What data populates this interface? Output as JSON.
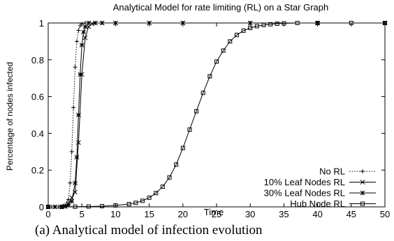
{
  "chart_data": {
    "type": "line",
    "title": "Analytical Model for rate limiting (RL) on a Star Graph",
    "xlabel": "Time",
    "ylabel": "Percentage of nodes infected",
    "xlim": [
      0,
      50
    ],
    "ylim": [
      0,
      1
    ],
    "xticks": [
      "0",
      "5",
      "10",
      "15",
      "20",
      "25",
      "30",
      "35",
      "40",
      "45",
      "50"
    ],
    "yticks": [
      "0",
      "0.2",
      "0.4",
      "0.6",
      "0.8",
      "1"
    ],
    "grid": false,
    "legend_position": "bottom-right",
    "series": [
      {
        "name": "No RL",
        "marker": "plus",
        "line": "dotted",
        "x": [
          0,
          0.5,
          1,
          1.5,
          2,
          2.5,
          3,
          3.25,
          3.5,
          3.75,
          4,
          4.25,
          4.5,
          4.75,
          5,
          5.5,
          6,
          7,
          8,
          10,
          15,
          20,
          30,
          40,
          50
        ],
        "y": [
          0,
          0,
          0,
          0,
          0.002,
          0.01,
          0.04,
          0.13,
          0.3,
          0.54,
          0.76,
          0.9,
          0.96,
          0.985,
          0.995,
          1,
          1,
          1,
          1,
          1,
          1,
          1,
          1,
          1,
          1
        ]
      },
      {
        "name": "10% Leaf Nodes RL",
        "marker": "x",
        "line": "solid",
        "x": [
          0,
          1,
          2,
          2.5,
          3,
          3.5,
          4,
          4.5,
          5,
          5.5,
          6,
          6.5,
          7,
          8,
          10,
          15,
          20,
          30,
          40,
          50
        ],
        "y": [
          0,
          0,
          0,
          0.005,
          0.02,
          0.05,
          0.08,
          0.35,
          0.72,
          0.92,
          0.98,
          0.995,
          1,
          1,
          1,
          1,
          1,
          1,
          1,
          1
        ]
      },
      {
        "name": "30% Leaf Nodes RL",
        "marker": "star",
        "line": "solid",
        "x": [
          0,
          1,
          2,
          2.5,
          3,
          3.5,
          4,
          4.25,
          4.5,
          4.75,
          5,
          5.25,
          5.5,
          6,
          7,
          8,
          10,
          15,
          20,
          30,
          40,
          50
        ],
        "y": [
          0,
          0,
          0,
          0.002,
          0.01,
          0.03,
          0.13,
          0.27,
          0.5,
          0.72,
          0.88,
          0.95,
          0.98,
          1,
          1,
          1,
          1,
          1,
          1,
          1,
          1,
          1
        ]
      },
      {
        "name": "Hub Node RL",
        "marker": "square",
        "line": "solid",
        "x": [
          0,
          2,
          4,
          6,
          8,
          10,
          12,
          13,
          14,
          15,
          16,
          17,
          18,
          19,
          20,
          21,
          22,
          23,
          24,
          25,
          26,
          27,
          28,
          29,
          30,
          31,
          32,
          33,
          34,
          35,
          37,
          40,
          45,
          50
        ],
        "y": [
          0,
          0,
          0.001,
          0.002,
          0.004,
          0.008,
          0.015,
          0.022,
          0.033,
          0.05,
          0.075,
          0.11,
          0.16,
          0.23,
          0.32,
          0.42,
          0.52,
          0.62,
          0.71,
          0.79,
          0.85,
          0.9,
          0.935,
          0.958,
          0.973,
          0.983,
          0.989,
          0.993,
          0.996,
          0.998,
          1,
          1,
          1,
          1
        ]
      }
    ]
  },
  "caption": "(a) Analytical model of infection evolution"
}
